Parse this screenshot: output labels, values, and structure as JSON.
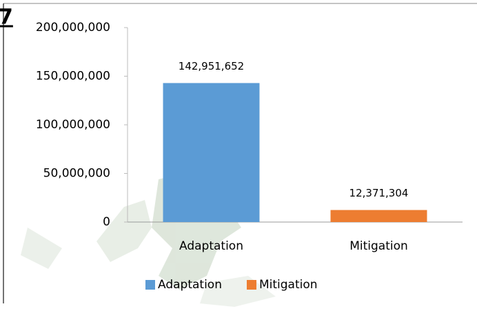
{
  "chart_data": {
    "type": "bar",
    "annotations": [
      "7"
    ],
    "categories": [
      "Adaptation",
      "Mitigation"
    ],
    "values": [
      142951652,
      12371304
    ],
    "value_labels": [
      "142,951,652",
      "12,371,304"
    ],
    "colors": [
      "#5b9bd5",
      "#ed7d31"
    ],
    "ylim": [
      0,
      200000000
    ],
    "yticks": [
      0,
      {
        "value": 50000000,
        "label": "50,000,000"
      },
      {
        "value": 100000000,
        "label": "100,000,000"
      },
      {
        "value": 150000000,
        "label": "150,000,000"
      },
      {
        "value": 200000000,
        "label": "200,000,000"
      }
    ],
    "grid": false,
    "legend": "bottom"
  }
}
